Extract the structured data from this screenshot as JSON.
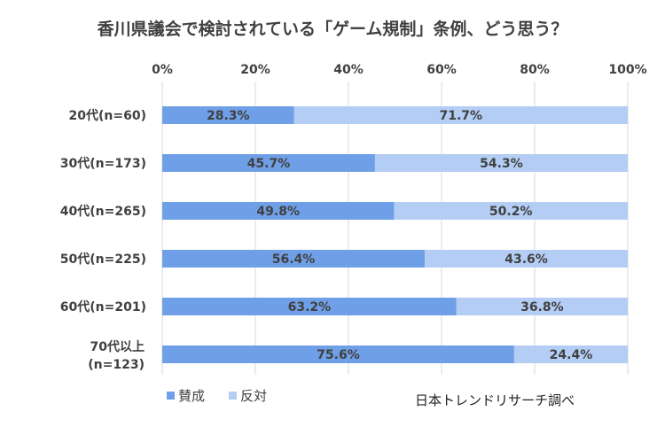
{
  "chart_data": {
    "type": "bar",
    "orientation": "horizontal",
    "stacked": true,
    "percent_stacked": true,
    "title": "香川県議会で検討されている「ゲーム規制」条例、どう思う？",
    "categories": [
      [
        "20代(n=60)"
      ],
      [
        "30代(n=173)"
      ],
      [
        "40代(n=265)"
      ],
      [
        "50代(n=225)"
      ],
      [
        "60代(n=201)"
      ],
      [
        "70代以上",
        "(n=123)"
      ]
    ],
    "series": [
      {
        "name": "賛成",
        "color": "#6f9fe6",
        "values": [
          28.3,
          45.7,
          49.8,
          56.4,
          63.2,
          75.6
        ]
      },
      {
        "name": "反対",
        "color": "#b4cdf5",
        "values": [
          71.7,
          54.3,
          50.2,
          43.6,
          36.8,
          24.4
        ]
      }
    ],
    "data_labels": [
      [
        "28.3%",
        "45.7%",
        "49.8%",
        "56.4%",
        "63.2%",
        "75.6%"
      ],
      [
        "71.7%",
        "54.3%",
        "50.2%",
        "43.6%",
        "36.8%",
        "24.4%"
      ]
    ],
    "xaxis": {
      "ticks": [
        0,
        20,
        40,
        60,
        80,
        100
      ],
      "tick_labels": [
        "0%",
        "20%",
        "40%",
        "60%",
        "80%",
        "100%"
      ],
      "position": "top",
      "range": [
        0,
        100
      ]
    },
    "grid": true,
    "legend": "bottom-left",
    "source": "日本トレンドリサーチ調べ"
  }
}
